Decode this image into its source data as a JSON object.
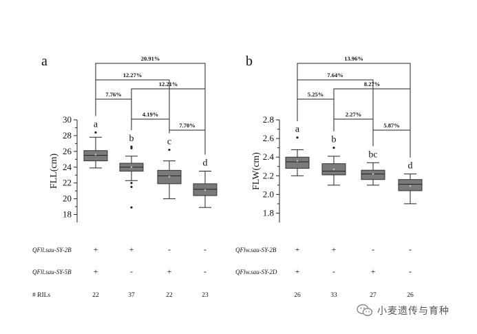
{
  "watermark": {
    "text": "小麦遗传与育种",
    "icon": "wechat-bubble-icon"
  },
  "row_labels": {
    "rils": "# RILs"
  },
  "chart_data": [
    {
      "type": "boxplot",
      "panel_label": "a",
      "ylabel": "FLL(cm)",
      "ylim": [
        17,
        30
      ],
      "yticks": [
        18,
        20,
        22,
        24,
        26,
        28,
        30
      ],
      "box_color": "#7a7a7a",
      "groups": [
        {
          "whisker_low": 23.9,
          "q1": 24.8,
          "median": 25.5,
          "q3": 26.1,
          "whisker_high": 27.8,
          "mean": 25.6,
          "outliers": [
            28.4
          ],
          "sig": "a"
        },
        {
          "whisker_low": 22.3,
          "q1": 23.5,
          "median": 24.0,
          "q3": 24.5,
          "whisker_high": 25.4,
          "mean": 24.0,
          "outliers": [
            26.6,
            26.4,
            22.0,
            21.5,
            18.9
          ],
          "sig": "b"
        },
        {
          "whisker_low": 20.0,
          "q1": 21.9,
          "median": 22.9,
          "q3": 23.6,
          "whisker_high": 24.8,
          "mean": 22.8,
          "outliers": [
            26.2
          ],
          "sig": "c"
        },
        {
          "whisker_low": 18.9,
          "q1": 20.4,
          "median": 21.2,
          "q3": 21.9,
          "whisker_high": 23.5,
          "mean": 21.1,
          "outliers": [],
          "sig": "d"
        }
      ],
      "comparisons": [
        {
          "from": 1,
          "to": 4,
          "label": "20.91%"
        },
        {
          "from": 1,
          "to": 3,
          "label": "12.27%"
        },
        {
          "from": 2,
          "to": 4,
          "label": "12.21%"
        },
        {
          "from": 1,
          "to": 2,
          "label": "7.76%"
        },
        {
          "from": 2,
          "to": 3,
          "label": "4.19%"
        },
        {
          "from": 3,
          "to": 4,
          "label": "7.70%"
        }
      ],
      "genotype_rows": [
        {
          "label": "QFll.sau-SY-2B",
          "values": [
            "+",
            "+",
            "-",
            "-"
          ]
        },
        {
          "label": "QFll.sau-SY-5B",
          "values": [
            "+",
            "-",
            "+",
            "-"
          ]
        }
      ],
      "rils": [
        "22",
        "37",
        "22",
        "23"
      ]
    },
    {
      "type": "boxplot",
      "panel_label": "b",
      "ylabel": "FLW(cm)",
      "ylim": [
        1.7,
        2.8
      ],
      "yticks": [
        "1.8",
        "2.0",
        "2.2",
        "2.4",
        "2.6",
        "2.8"
      ],
      "box_color": "#7a7a7a",
      "groups": [
        {
          "whisker_low": 2.2,
          "q1": 2.28,
          "median": 2.35,
          "q3": 2.4,
          "whisker_high": 2.48,
          "mean": 2.36,
          "outliers": [
            2.61
          ],
          "sig": "a"
        },
        {
          "whisker_low": 2.1,
          "q1": 2.21,
          "median": 2.25,
          "q3": 2.33,
          "whisker_high": 2.41,
          "mean": 2.27,
          "outliers": [
            2.5
          ],
          "sig": "b"
        },
        {
          "whisker_low": 2.1,
          "q1": 2.16,
          "median": 2.22,
          "q3": 2.26,
          "whisker_high": 2.34,
          "mean": 2.22,
          "outliers": [],
          "sig": "bc"
        },
        {
          "whisker_low": 1.9,
          "q1": 2.04,
          "median": 2.11,
          "q3": 2.16,
          "whisker_high": 2.22,
          "mean": 2.09,
          "outliers": [],
          "sig": "d"
        }
      ],
      "comparisons": [
        {
          "from": 1,
          "to": 4,
          "label": "13.96%"
        },
        {
          "from": 1,
          "to": 3,
          "label": "7.64%"
        },
        {
          "from": 2,
          "to": 4,
          "label": "8.27%"
        },
        {
          "from": 1,
          "to": 2,
          "label": "5.25%"
        },
        {
          "from": 2,
          "to": 3,
          "label": "2.27%"
        },
        {
          "from": 3,
          "to": 4,
          "label": "5.87%"
        }
      ],
      "genotype_rows": [
        {
          "label": "QFlw.sau-SY-2B",
          "values": [
            "+",
            "+",
            "-",
            "-"
          ]
        },
        {
          "label": "QFlw.sau-SY-2D",
          "values": [
            "+",
            "-",
            "+",
            "-"
          ]
        }
      ],
      "rils": [
        "26",
        "33",
        "27",
        "26"
      ]
    }
  ]
}
